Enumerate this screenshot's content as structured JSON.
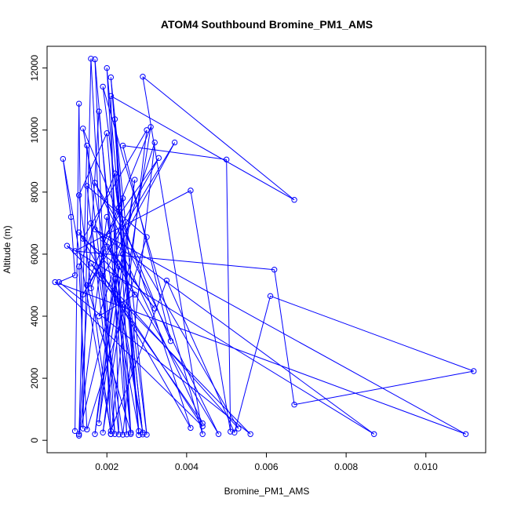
{
  "chart_data": {
    "type": "line",
    "title": "ATOM4 Southbound Bromine_PM1_AMS",
    "xlabel": "Bromine_PM1_AMS",
    "ylabel": "Altitude (m)",
    "xlim": [
      0.0005,
      0.0115
    ],
    "ylim": [
      -400,
      12700
    ],
    "x_ticks": [
      0.002,
      0.004,
      0.006,
      0.008,
      0.01
    ],
    "x_tick_labels": [
      "0.002",
      "0.004",
      "0.006",
      "0.008",
      "0.010"
    ],
    "y_ticks": [
      0,
      2000,
      4000,
      6000,
      8000,
      10000,
      12000
    ],
    "y_tick_labels": [
      "0",
      "2000",
      "4000",
      "6000",
      "8000",
      "10000",
      "12000"
    ],
    "grid": false,
    "legend": "none",
    "series": [
      {
        "color": "#0000ff",
        "marker": "open-circle",
        "line": true,
        "points": [
          [
            0.0012,
            300
          ],
          [
            0.0013,
            10850
          ],
          [
            0.0014,
            380
          ],
          [
            0.0016,
            12300
          ],
          [
            0.0021,
            200
          ],
          [
            0.0017,
            12280
          ],
          [
            0.0025,
            190
          ],
          [
            0.002,
            12000
          ],
          [
            0.0028,
            170
          ],
          [
            0.0021,
            11700
          ],
          [
            0.003,
            180
          ],
          [
            0.0019,
            11400
          ],
          [
            0.0044,
            200
          ],
          [
            0.0029,
            11720
          ],
          [
            0.0067,
            7750
          ],
          [
            0.0021,
            11100
          ],
          [
            0.0023,
            190
          ],
          [
            0.0015,
            9500
          ],
          [
            0.0013,
            150
          ],
          [
            0.0018,
            10600
          ],
          [
            0.0026,
            200
          ],
          [
            0.0022,
            10350
          ],
          [
            0.0028,
            300
          ],
          [
            0.0014,
            10050
          ],
          [
            0.0036,
            3200
          ],
          [
            0.0024,
            9500
          ],
          [
            0.005,
            9050
          ],
          [
            0.0051,
            280
          ],
          [
            0.0041,
            8050
          ],
          [
            0.0012,
            6100
          ],
          [
            0.0062,
            5500
          ],
          [
            0.0067,
            1150
          ],
          [
            0.0112,
            2230
          ],
          [
            0.0061,
            4650
          ],
          [
            0.0052,
            250
          ],
          [
            0.0035,
            5150
          ],
          [
            0.0021,
            300
          ],
          [
            0.0009,
            9070
          ],
          [
            0.0011,
            7200
          ],
          [
            0.0012,
            5320
          ],
          [
            0.0008,
            5100
          ],
          [
            0.0056,
            200
          ],
          [
            0.001,
            6270
          ],
          [
            0.0087,
            200
          ],
          [
            0.0017,
            6800
          ],
          [
            0.011,
            200
          ],
          [
            0.0007,
            5100
          ],
          [
            0.0044,
            450
          ],
          [
            0.0019,
            5300
          ],
          [
            0.0037,
            9600
          ],
          [
            0.0014,
            4700
          ],
          [
            0.0033,
            9100
          ],
          [
            0.0019,
            6500
          ],
          [
            0.0022,
            200
          ],
          [
            0.0015,
            8200
          ],
          [
            0.003,
            6550
          ],
          [
            0.0015,
            350
          ],
          [
            0.0013,
            5600
          ],
          [
            0.0022,
            8600
          ],
          [
            0.0029,
            190
          ],
          [
            0.0023,
            7500
          ],
          [
            0.0041,
            400
          ],
          [
            0.0013,
            6700
          ],
          [
            0.0027,
            4700
          ],
          [
            0.0018,
            4000
          ],
          [
            0.0032,
            9600
          ],
          [
            0.0024,
            180
          ],
          [
            0.0016,
            7000
          ],
          [
            0.0032,
            4250
          ],
          [
            0.002,
            6250
          ],
          [
            0.0048,
            200
          ],
          [
            0.0017,
            8300
          ],
          [
            0.0053,
            380
          ],
          [
            0.0016,
            5700
          ],
          [
            0.0044,
            550
          ],
          [
            0.0024,
            6000
          ],
          [
            0.0013,
            200
          ],
          [
            0.002,
            7200
          ],
          [
            0.0029,
            250
          ],
          [
            0.0022,
            5200
          ],
          [
            0.0018,
            550
          ],
          [
            0.0027,
            8400
          ],
          [
            0.0019,
            250
          ],
          [
            0.0031,
            10100
          ],
          [
            0.0015,
            5000
          ],
          [
            0.0026,
            250
          ],
          [
            0.002,
            9900
          ],
          [
            0.0013,
            7900
          ],
          [
            0.0021,
            200
          ],
          [
            0.003,
            10000
          ],
          [
            0.0014,
            6500
          ],
          [
            0.0023,
            5600
          ],
          [
            0.0017,
            200
          ],
          [
            0.0024,
            7800
          ],
          [
            0.0016,
            4900
          ]
        ]
      }
    ]
  }
}
